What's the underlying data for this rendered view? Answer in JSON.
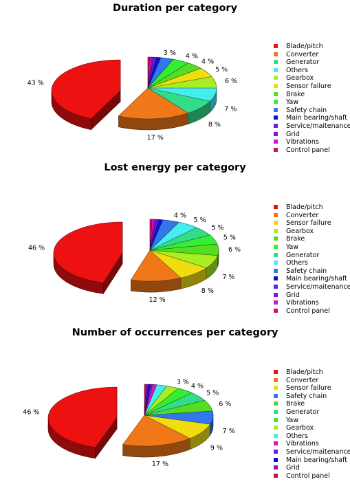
{
  "colors": {
    "Blade/pitch": "#ee1111",
    "Converter": "#f07818",
    "Generator": "#33dd88",
    "Others": "#44eeee",
    "Gearbox": "#a8ee22",
    "Sensor failure": "#f0dd11",
    "Brake": "#55dd22",
    "Yaw": "#33ee33",
    "Safety chain": "#3377ee",
    "Main bearing/shaft": "#1111cc",
    "Service/maitenance": "#6622dd",
    "Grid": "#8811dd",
    "Vibrations": "#dd11cc",
    "Control panel": "#cc1155"
  },
  "chart_data": [
    {
      "type": "pie",
      "title": "Duration per category",
      "categories": [
        "Blade/pitch",
        "Converter",
        "Generator",
        "Others",
        "Gearbox",
        "Sensor failure",
        "Brake",
        "Yaw",
        "Safety chain",
        "Main bearing/shaft",
        "Service/maitenance",
        "Grid",
        "Vibrations",
        "Control panel"
      ],
      "values": [
        43,
        17,
        8,
        7,
        6,
        5,
        4,
        4,
        3,
        1,
        0.6,
        0.5,
        0.5,
        0.4
      ],
      "labels": [
        "43 %",
        "17 %",
        "8 %",
        "7 %",
        "6 %",
        "5 %",
        "4 %",
        "4 %",
        "3 %",
        "",
        "",
        "",
        "",
        ""
      ],
      "legend": "right",
      "explode": "Blade/pitch"
    },
    {
      "type": "pie",
      "title": "Lost energy per category",
      "categories": [
        "Blade/pitch",
        "Converter",
        "Sensor failure",
        "Gearbox",
        "Brake",
        "Yaw",
        "Generator",
        "Others",
        "Safety chain",
        "Main bearing/shaft",
        "Service/maitenance",
        "Grid",
        "Vibrations",
        "Control panel"
      ],
      "values": [
        46,
        12,
        8,
        7,
        6,
        5,
        5,
        5,
        4,
        1,
        0.5,
        0.5,
        0.5,
        0.5
      ],
      "labels": [
        "46 %",
        "12 %",
        "8 %",
        "7 %",
        "6 %",
        "5 %",
        "5 %",
        "5 %",
        "4 %",
        "",
        "",
        "",
        "",
        ""
      ],
      "legend": "right",
      "explode": "Blade/pitch"
    },
    {
      "type": "pie",
      "title": "Number of occurrences per category",
      "categories": [
        "Blade/pitch",
        "Converter",
        "Sensor failure",
        "Safety chain",
        "Brake",
        "Generator",
        "Yaw",
        "Gearbox",
        "Others",
        "Vibrations",
        "Service/maitenance",
        "Main bearing/shaft",
        "Grid",
        "Control panel"
      ],
      "values": [
        46,
        17,
        9,
        7,
        6,
        5,
        4,
        3,
        2.5,
        1,
        0.5,
        0.5,
        0.5,
        0.4
      ],
      "labels": [
        "46 %",
        "17 %",
        "9 %",
        "7 %",
        "6 %",
        "5 %",
        "4 %",
        "3 %",
        "",
        "",
        "",
        "",
        "",
        ""
      ],
      "legend": "right",
      "explode": "Blade/pitch"
    }
  ]
}
